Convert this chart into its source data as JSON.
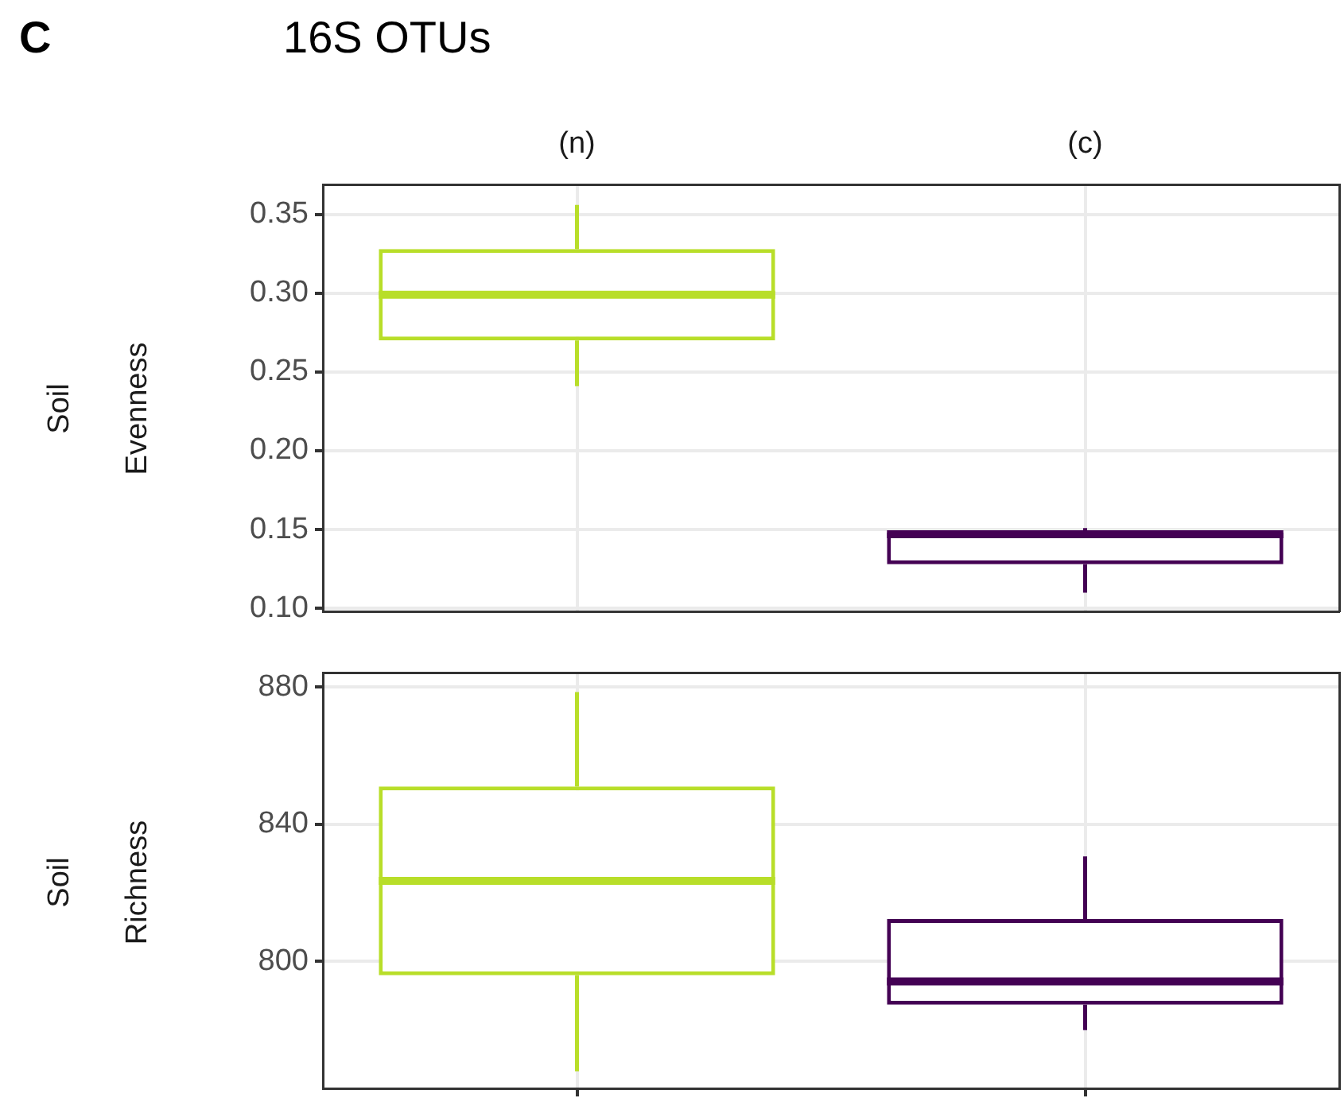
{
  "chart_data": [
    {
      "type": "box",
      "title": "16S OTUs",
      "annotations": [
        "C"
      ],
      "ylabel": "Soil\nEvenness",
      "categories": [
        "(n)",
        "(c)"
      ],
      "colors": [
        "#b8de29",
        "#440154"
      ],
      "boxes": [
        {
          "low": 0.241,
          "q1": 0.27,
          "median": 0.299,
          "q3": 0.328,
          "high": 0.356
        },
        {
          "low": 0.11,
          "q1": 0.128,
          "median": 0.147,
          "q3": 0.148,
          "high": 0.151
        }
      ],
      "ylim": [
        0.098,
        0.369
      ],
      "yticks": [
        {
          "value": 0.1,
          "label": "0.10"
        },
        0.15,
        {
          "value": 0.2,
          "label": "0.20"
        },
        0.25,
        {
          "value": 0.3,
          "label": "0.30"
        },
        0.35
      ],
      "grid": true
    },
    {
      "type": "box",
      "ylabel": "Soil\nRichness",
      "categories": [
        null,
        null
      ],
      "colors": [
        "#b8de29",
        "#440154"
      ],
      "boxes": [
        {
          "low": 768,
          "q1": 796,
          "median": 823.5,
          "q3": 851,
          "high": 878.5
        },
        {
          "low": 780,
          "q1": 787.4,
          "median": 794.2,
          "q3": 812.4,
          "high": 830.6
        }
      ],
      "ylim": [
        763,
        884
      ],
      "yticks": [
        800,
        840,
        880
      ],
      "grid": true,
      "tick_labels": "y"
    }
  ]
}
